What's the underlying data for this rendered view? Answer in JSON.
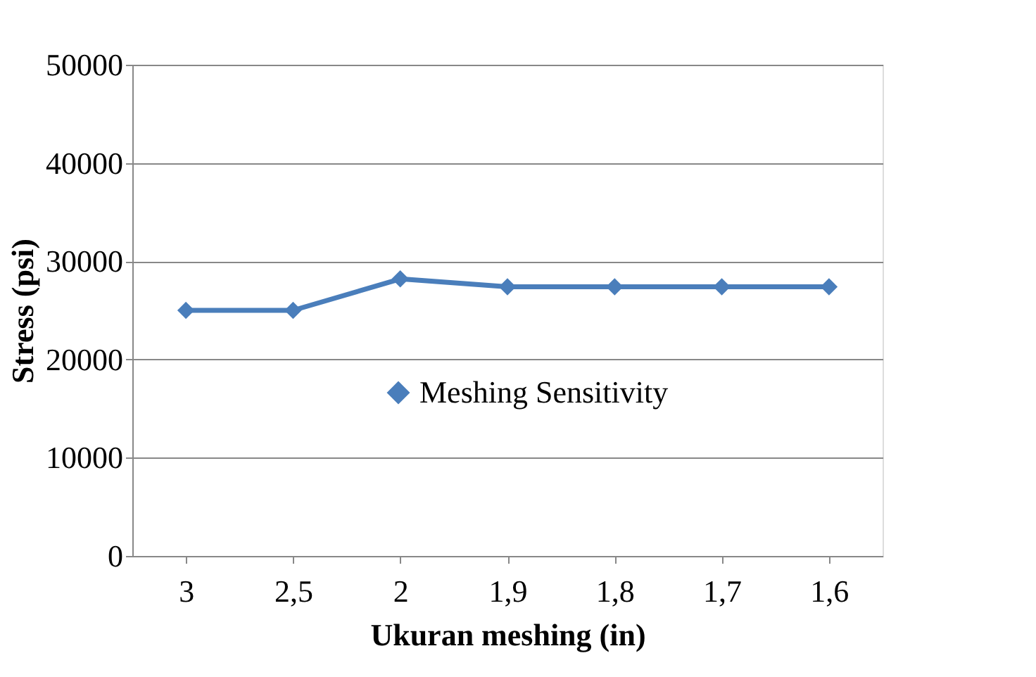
{
  "chart_data": {
    "type": "line",
    "xlabel": "Ukuran meshing (in)",
    "ylabel": "Stress (psi)",
    "categories": [
      "3",
      "2,5",
      "2",
      "1,9",
      "1,8",
      "1,7",
      "1,6"
    ],
    "series": [
      {
        "name": "Meshing Sensitivity",
        "color": "#4a7ebb",
        "values": [
          25000,
          25000,
          28200,
          27400,
          27400,
          27400,
          27400
        ]
      }
    ],
    "ylim": [
      0,
      50000
    ],
    "yticks": [
      0,
      10000,
      20000,
      30000,
      40000,
      50000
    ],
    "grid": "y",
    "legend": "right",
    "marker": "diamond",
    "line_style": "solid"
  }
}
